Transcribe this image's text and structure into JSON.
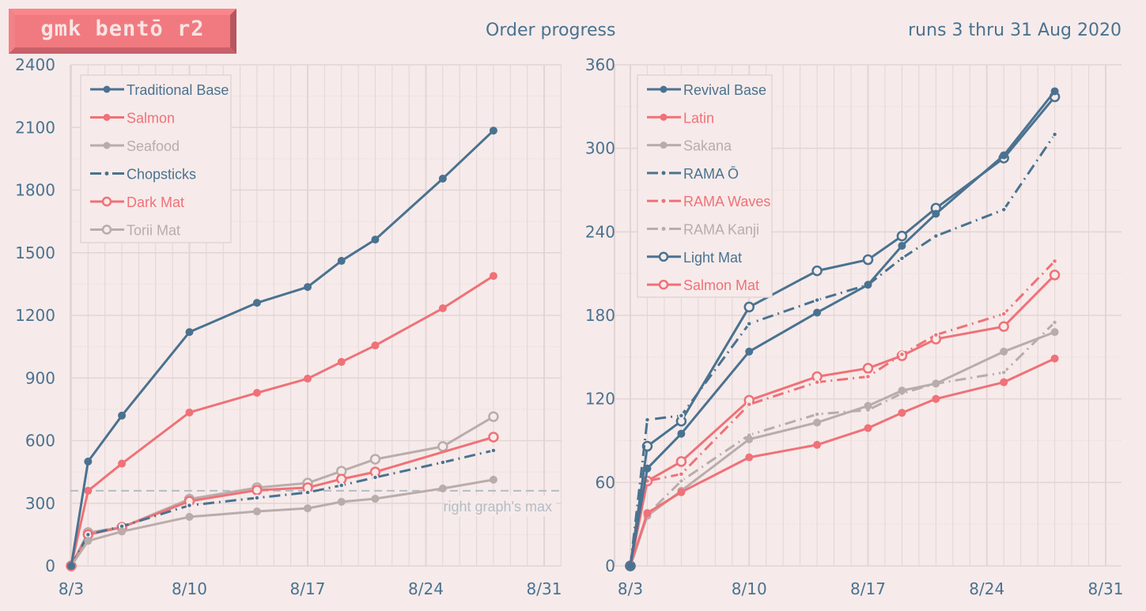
{
  "header": {
    "logo": "gmk bentō r2",
    "title": "Order progress",
    "subtitle": "runs 3 thru 31 Aug 2020"
  },
  "colors": {
    "blue": "#4a7290",
    "salmon": "#f07178",
    "gray": "#b9adab",
    "background": "#f6ebea",
    "grid": "#e3d5d4",
    "reference": "#b3bcc6"
  },
  "chart_data": [
    {
      "type": "line",
      "title": "Order progress",
      "x": [
        "8/3",
        "8/4",
        "8/6",
        "8/10",
        "8/14",
        "8/17",
        "8/19",
        "8/21",
        "8/25",
        "8/28"
      ],
      "x_days": [
        0,
        1,
        3,
        7,
        11,
        14,
        16,
        18,
        22,
        25
      ],
      "xticks": [
        "8/3",
        "8/10",
        "8/17",
        "8/24",
        "8/31"
      ],
      "xtick_days": [
        0,
        7,
        14,
        21,
        28
      ],
      "xlim_days": [
        0,
        28
      ],
      "ylim": [
        0,
        2400
      ],
      "yticks": [
        0,
        300,
        600,
        900,
        1200,
        1500,
        1800,
        2100,
        2400
      ],
      "grid": true,
      "legend": "top-left",
      "series": [
        {
          "name": "Traditional Base",
          "color": "blue",
          "style": "solid",
          "marker": "filled",
          "values": [
            0,
            500,
            720,
            1120,
            1260,
            1336,
            1461,
            1563,
            1855,
            2085
          ]
        },
        {
          "name": "Salmon",
          "color": "salmon",
          "style": "solid",
          "marker": "filled",
          "values": [
            0,
            360,
            490,
            735,
            829,
            897,
            977,
            1056,
            1234,
            1389
          ]
        },
        {
          "name": "Seafood",
          "color": "gray",
          "style": "solid",
          "marker": "filled",
          "values": [
            0,
            120,
            165,
            235,
            261,
            276,
            307,
            322,
            371,
            413
          ]
        },
        {
          "name": "Chopsticks",
          "color": "blue",
          "style": "dashdot",
          "marker": "dot",
          "values": [
            0,
            150,
            190,
            290,
            326,
            352,
            386,
            424,
            496,
            553
          ]
        },
        {
          "name": "Dark Mat",
          "color": "salmon",
          "style": "solid",
          "marker": "open",
          "values": [
            0,
            150,
            185,
            310,
            363,
            375,
            416,
            450,
            null,
            617
          ]
        },
        {
          "name": "Torii Mat",
          "color": "gray",
          "style": "solid",
          "marker": "open",
          "values": [
            0,
            160,
            185,
            320,
            375,
            397,
            454,
            511,
            572,
            715
          ]
        }
      ],
      "reference_line": {
        "value": 360,
        "label": "right graph's max"
      }
    },
    {
      "type": "line",
      "x": [
        "8/3",
        "8/4",
        "8/6",
        "8/10",
        "8/14",
        "8/17",
        "8/19",
        "8/21",
        "8/25",
        "8/28"
      ],
      "x_days": [
        0,
        1,
        3,
        7,
        11,
        14,
        16,
        18,
        22,
        25
      ],
      "xticks": [
        "8/3",
        "8/10",
        "8/17",
        "8/24",
        "8/31"
      ],
      "xtick_days": [
        0,
        7,
        14,
        21,
        28
      ],
      "xlim_days": [
        0,
        28
      ],
      "ylim": [
        0,
        360
      ],
      "yticks": [
        0,
        60,
        120,
        180,
        240,
        300,
        360
      ],
      "grid": true,
      "legend": "top-left",
      "series": [
        {
          "name": "Revival Base",
          "color": "blue",
          "style": "solid",
          "marker": "filled",
          "values": [
            0,
            70,
            95,
            154,
            182,
            202,
            230,
            253,
            295,
            341
          ]
        },
        {
          "name": "Latin",
          "color": "salmon",
          "style": "solid",
          "marker": "filled",
          "values": [
            0,
            38,
            53,
            78,
            87,
            99,
            110,
            120,
            132,
            149
          ]
        },
        {
          "name": "Sakana",
          "color": "gray",
          "style": "solid",
          "marker": "filled",
          "values": [
            0,
            36,
            54,
            91,
            103,
            115,
            126,
            131,
            154,
            168
          ]
        },
        {
          "name": "RAMA Ō",
          "color": "blue",
          "style": "dashdot",
          "marker": "dot",
          "values": [
            0,
            105,
            108,
            174,
            191,
            202,
            221,
            237,
            256,
            310
          ]
        },
        {
          "name": "RAMA Waves",
          "color": "salmon",
          "style": "dashdot",
          "marker": "dot",
          "values": [
            0,
            61,
            66,
            116,
            132,
            136,
            152,
            166,
            181,
            219
          ]
        },
        {
          "name": "RAMA Kanji",
          "color": "gray",
          "style": "dashdot",
          "marker": "dot",
          "values": [
            0,
            37,
            61,
            94,
            109,
            112,
            124,
            131,
            139,
            175
          ]
        },
        {
          "name": "Light Mat",
          "color": "blue",
          "style": "solid",
          "marker": "open",
          "values": [
            0,
            86,
            104,
            186,
            212,
            220,
            237,
            257,
            293,
            337
          ]
        },
        {
          "name": "Salmon Mat",
          "color": "salmon",
          "style": "solid",
          "marker": "open",
          "values": [
            0,
            61,
            75,
            119,
            136,
            142,
            151,
            163,
            172,
            209
          ]
        }
      ]
    }
  ]
}
